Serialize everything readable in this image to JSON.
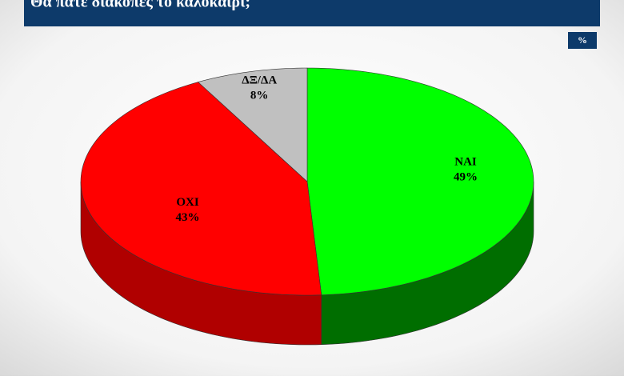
{
  "chart_data": {
    "type": "pie3d",
    "title": "Θα πάτε διακοπές το καλοκαίρι;",
    "unit_label": "%",
    "categories": [
      "ΝΑΙ",
      "ΟΧΙ",
      "ΔΞ/ΔΑ"
    ],
    "values": [
      49,
      43,
      8
    ],
    "value_labels": [
      "49%",
      "43%",
      "8%"
    ],
    "colors": [
      "#00ff00",
      "#ff0000",
      "#c0c0c0"
    ],
    "side_colors": [
      "#006e00",
      "#b00000",
      "#8a8a8a"
    ]
  }
}
